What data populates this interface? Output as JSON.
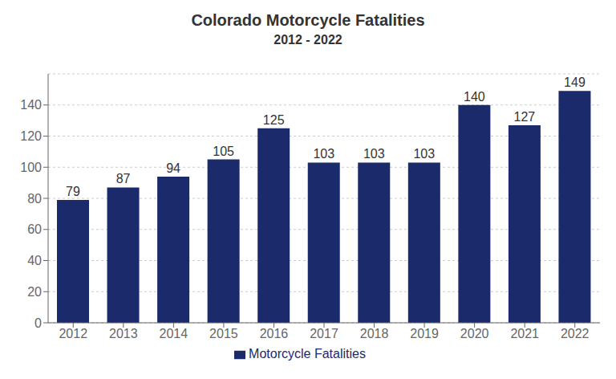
{
  "chart_data": {
    "type": "bar",
    "title": "Colorado Motorcycle Fatalities",
    "subtitle": "2012 - 2022",
    "categories": [
      "2012",
      "2013",
      "2014",
      "2015",
      "2016",
      "2017",
      "2018",
      "2019",
      "2020",
      "2021",
      "2022"
    ],
    "series": [
      {
        "name": "Motorcycle Fatalities",
        "color": "#1B2A6B",
        "values": [
          79,
          87,
          94,
          105,
          125,
          103,
          103,
          103,
          140,
          127,
          149
        ]
      }
    ],
    "ylim": [
      0,
      160
    ],
    "yticks": [
      0,
      20,
      40,
      60,
      80,
      100,
      120,
      140
    ],
    "grid": true,
    "legend": "bottom",
    "data_labels": true
  }
}
